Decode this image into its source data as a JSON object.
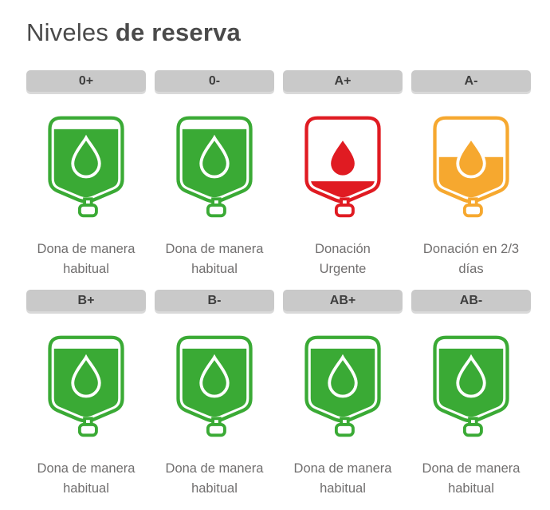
{
  "title": {
    "light": "Niveles",
    "bold": "de reserva"
  },
  "colors": {
    "green": "#3aaa35",
    "red": "#e01b22",
    "orange": "#f6a82f",
    "badge_bg": "#c9c9c9",
    "badge_shadow": "#d9d9d9",
    "badge_text": "#3e3e3e",
    "title_text": "#4a4a4a",
    "caption_text": "#716f6f"
  },
  "cards": [
    {
      "type": "0+",
      "status_line1": "Dona de manera",
      "status_line2": "habitual",
      "level": "full",
      "fill_percent": 93,
      "color_key": "green"
    },
    {
      "type": "0-",
      "status_line1": "Dona de manera",
      "status_line2": "habitual",
      "level": "full",
      "fill_percent": 93,
      "color_key": "green"
    },
    {
      "type": "A+",
      "status_line1": "Donación",
      "status_line2": "Urgente",
      "level": "urgent",
      "fill_percent": 22,
      "color_key": "red"
    },
    {
      "type": "A-",
      "status_line1": "Donación en 2/3",
      "status_line2": "días",
      "level": "medium",
      "fill_percent": 55,
      "color_key": "orange"
    },
    {
      "type": "B+",
      "status_line1": "Dona de manera",
      "status_line2": "habitual",
      "level": "full",
      "fill_percent": 93,
      "color_key": "green"
    },
    {
      "type": "B-",
      "status_line1": "Dona de manera",
      "status_line2": "habitual",
      "level": "full",
      "fill_percent": 93,
      "color_key": "green"
    },
    {
      "type": "AB+",
      "status_line1": "Dona de manera",
      "status_line2": "habitual",
      "level": "full",
      "fill_percent": 93,
      "color_key": "green"
    },
    {
      "type": "AB-",
      "status_line1": "Dona de manera",
      "status_line2": "habitual",
      "level": "full",
      "fill_percent": 93,
      "color_key": "green"
    }
  ]
}
